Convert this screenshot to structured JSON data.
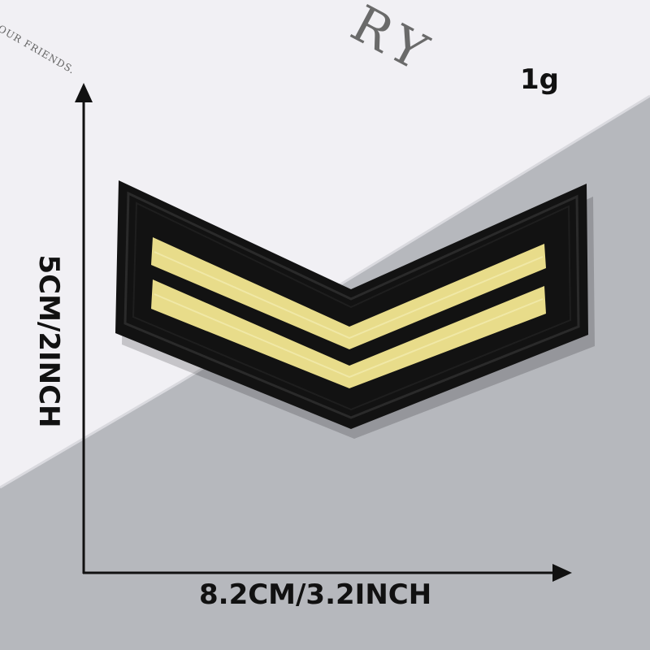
{
  "product": {
    "weight": "1g",
    "width_dimension": "8.2CM/3.2INCH",
    "height_dimension": "5CM/2INCH"
  },
  "background_card": {
    "large_text": "RY",
    "small_text": "OUR FRIENDS."
  },
  "patch": {
    "description_icon": "chevron-patch",
    "colors": {
      "patch_body": "#121212",
      "stripe_gold": "#e8dc8a",
      "card_white": "#f1f0f4",
      "background_gray": "#b6b8bd",
      "arrow": "#111111"
    }
  }
}
